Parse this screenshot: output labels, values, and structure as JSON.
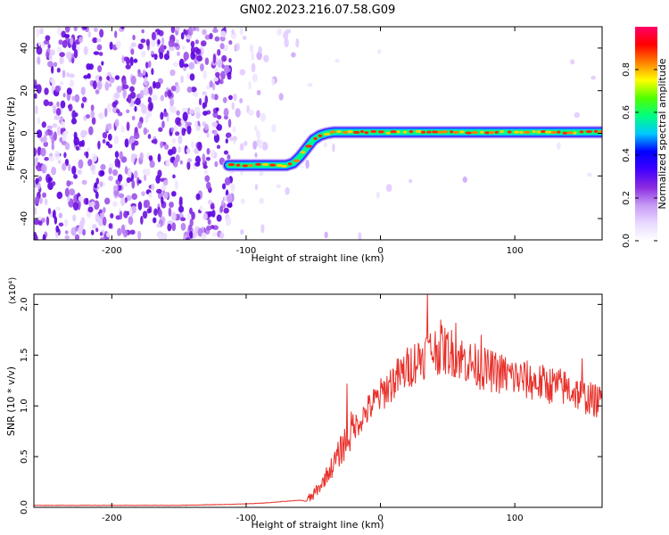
{
  "title": "GN02.2023.216.07.58.G09",
  "chart_data": [
    {
      "type": "heatmap",
      "xlabel": "Height of straight line (km)",
      "ylabel": "Frequency (Hz)",
      "xlim": [
        -258,
        165
      ],
      "ylim": [
        -50,
        50
      ],
      "xticks": [
        -200,
        -100,
        0,
        100
      ],
      "yticks": [
        -40,
        -20,
        0,
        20,
        40
      ],
      "colorbar": {
        "label": "Normalized spectral amplitude",
        "range": [
          0,
          1
        ],
        "ticks": [
          "0.0",
          "0.2",
          "0.4",
          "0.6",
          "0.8"
        ],
        "colormap": [
          "#ffffff",
          "#e8d8ff",
          "#c79af5",
          "#8b2be0",
          "#4000ff",
          "#0000ff",
          "#00c8ff",
          "#00ff80",
          "#50ff00",
          "#ffff00",
          "#ff8000",
          "#ff0000",
          "#ff0066"
        ]
      },
      "ridge": {
        "x": [
          -113,
          -70,
          -65,
          -60,
          -55,
          -50,
          -45,
          -40,
          -35,
          0,
          165
        ],
        "y": [
          -15,
          -15,
          -14,
          -11,
          -7,
          -3,
          -1,
          0,
          0.5,
          0.5,
          0.5
        ]
      }
    },
    {
      "type": "line",
      "xlabel": "Height of straight line (km)",
      "ylabel": "SNR (10 * v/v)",
      "ylabel_multiplier": "(x10⁴)",
      "xlim": [
        -258,
        165
      ],
      "ylim": [
        0,
        2.1
      ],
      "xticks": [
        -200,
        -100,
        0,
        100
      ],
      "yticks": [
        "0.0",
        "0.5",
        "1.0",
        "1.5",
        "2.0"
      ],
      "color": "#e8302a",
      "x": [
        -258,
        -200,
        -150,
        -110,
        -90,
        -80,
        -70,
        -60,
        -55,
        -50,
        -45,
        -40,
        -35,
        -30,
        -25,
        -20,
        -15,
        -10,
        -5,
        0,
        5,
        10,
        15,
        20,
        25,
        30,
        35,
        40,
        45,
        50,
        55,
        60,
        70,
        80,
        90,
        100,
        110,
        120,
        130,
        140,
        150,
        160,
        165
      ],
      "y": [
        0.02,
        0.02,
        0.02,
        0.03,
        0.04,
        0.05,
        0.06,
        0.07,
        0.06,
        0.12,
        0.2,
        0.32,
        0.42,
        0.55,
        0.68,
        0.78,
        0.86,
        0.95,
        1.03,
        1.1,
        1.18,
        1.25,
        1.3,
        1.37,
        1.43,
        1.48,
        1.52,
        1.55,
        1.55,
        1.54,
        1.52,
        1.47,
        1.4,
        1.35,
        1.32,
        1.28,
        1.25,
        1.22,
        1.2,
        1.17,
        1.1,
        1.05,
        1.04
      ],
      "spikes": [
        {
          "x": -48,
          "y": 0.22
        },
        {
          "x": -25,
          "y": 1.22
        },
        {
          "x": 35,
          "y": 2.1
        },
        {
          "x": 45,
          "y": 1.85
        },
        {
          "x": 56,
          "y": 1.82
        },
        {
          "x": 75,
          "y": 1.7
        },
        {
          "x": 150,
          "y": 1.47
        }
      ]
    }
  ]
}
